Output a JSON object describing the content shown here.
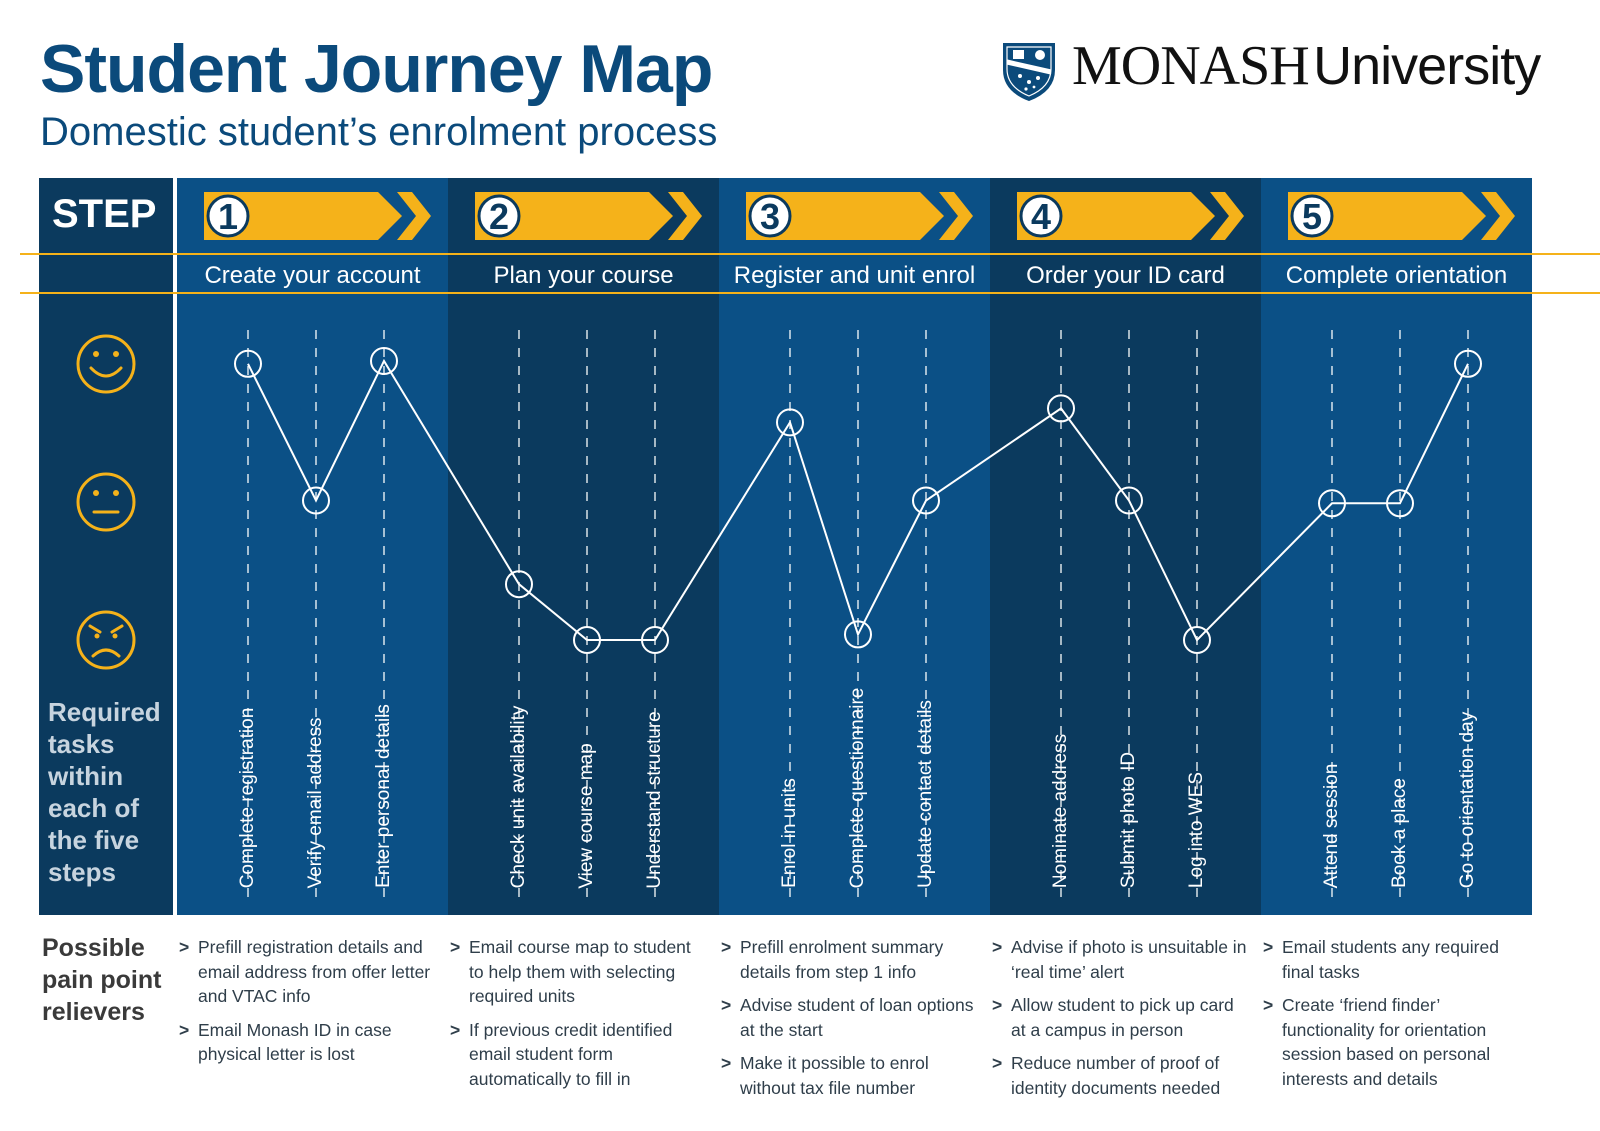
{
  "header": {
    "title": "Student Journey Map",
    "subtitle": "Domestic student’s enrolment process",
    "logo": {
      "monash": "MONASH",
      "university": "University"
    }
  },
  "labels": {
    "step": "STEP",
    "required_tasks": "Required tasks within each of the five steps",
    "pain_heading": "Possible pain point relievers"
  },
  "colors": {
    "band_light": "#0b5086",
    "band_dark": "#0b3a5e",
    "accent": "#f5b21a",
    "title": "#0b4a7b"
  },
  "emotion_levels": [
    {
      "level": "happy",
      "icon": "happy-face-icon"
    },
    {
      "level": "neutral",
      "icon": "neutral-face-icon"
    },
    {
      "level": "unhappy",
      "icon": "angry-face-icon"
    }
  ],
  "steps": [
    {
      "number": "1",
      "name": "Create your account",
      "tasks": [
        {
          "label": "Complete registration",
          "emotion": 0.99
        },
        {
          "label": "Verify email address",
          "emotion": 0.5
        },
        {
          "label": "Enter personal details",
          "emotion": 1.0
        }
      ],
      "pain_points": [
        "Prefill registration details and email address from offer letter and VTAC info",
        "Email Monash ID in case physical letter is lost"
      ]
    },
    {
      "number": "2",
      "name": "Plan your course",
      "tasks": [
        {
          "label": "Check unit availability",
          "emotion": 0.2
        },
        {
          "label": "View course map",
          "emotion": 0.0
        },
        {
          "label": "Understand structure",
          "emotion": 0.0
        }
      ],
      "pain_points": [
        "Email course map to student to help them with selecting required units",
        "If previous credit identified email student form automatically to fill in"
      ]
    },
    {
      "number": "3",
      "name": "Register and unit enrol",
      "tasks": [
        {
          "label": "Enrol in units",
          "emotion": 0.78
        },
        {
          "label": "Complete questionnaire",
          "emotion": 0.02
        },
        {
          "label": "Update contact details",
          "emotion": 0.5
        }
      ],
      "pain_points": [
        "Prefill enrolment summary details from step 1 info",
        "Advise student of loan options at the start",
        "Make it possible to enrol without tax file number"
      ]
    },
    {
      "number": "4",
      "name": "Order your ID card",
      "tasks": [
        {
          "label": "Nominate address",
          "emotion": 0.83
        },
        {
          "label": "Submit photo ID",
          "emotion": 0.5
        },
        {
          "label": "Log into WES",
          "emotion": 0.0
        }
      ],
      "pain_points": [
        "Advise if photo is unsuitable in ‘real time’ alert",
        "Allow student to pick up card at a campus in person",
        "Reduce number of proof of identity documents needed"
      ]
    },
    {
      "number": "5",
      "name": "Complete orientation",
      "tasks": [
        {
          "label": "Attend session",
          "emotion": 0.49
        },
        {
          "label": "Book a place",
          "emotion": 0.49
        },
        {
          "label": "Go to orientation day",
          "emotion": 0.99
        }
      ],
      "pain_points": [
        "Email students any required final tasks",
        "Create ‘friend finder’ functionality for orientation session based on personal interests and details"
      ]
    }
  ]
}
